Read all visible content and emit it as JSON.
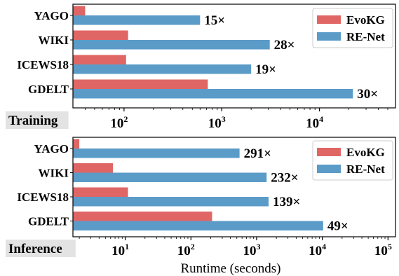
{
  "chart_data": [
    {
      "type": "bar",
      "orientation": "horizontal",
      "panel_label": "Training",
      "x_scale": "log",
      "xlim": [
        30,
        60000
      ],
      "xticks": [
        {
          "value": 100,
          "base": "10",
          "exp": "2"
        },
        {
          "value": 1000,
          "base": "10",
          "exp": "3"
        },
        {
          "value": 10000,
          "base": "10",
          "exp": "4"
        }
      ],
      "categories": [
        "YAGO",
        "WIKI",
        "ICEWS18",
        "GDELT"
      ],
      "series": [
        {
          "name": "EvoKG",
          "color": "#e06666",
          "values": [
            40,
            110,
            105,
            720
          ]
        },
        {
          "name": "RE-Net",
          "color": "#5b9bc8",
          "values": [
            600,
            3100,
            2000,
            22000
          ]
        }
      ],
      "annotations": [
        "15×",
        "28×",
        "19×",
        "30×"
      ],
      "legend": "top-right"
    },
    {
      "type": "bar",
      "orientation": "horizontal",
      "panel_label": "Inference",
      "x_scale": "log",
      "xlim": [
        1.6,
        130000
      ],
      "xticks": [
        {
          "value": 10,
          "base": "10",
          "exp": "1"
        },
        {
          "value": 100,
          "base": "10",
          "exp": "2"
        },
        {
          "value": 1000,
          "base": "10",
          "exp": "3"
        },
        {
          "value": 10000,
          "base": "10",
          "exp": "4"
        },
        {
          "value": 100000,
          "base": "10",
          "exp": "5"
        }
      ],
      "categories": [
        "YAGO",
        "WIKI",
        "ICEWS18",
        "GDELT"
      ],
      "series": [
        {
          "name": "EvoKG",
          "color": "#e06666",
          "values": [
            2,
            6.5,
            11,
            210
          ]
        },
        {
          "name": "RE-Net",
          "color": "#5b9bc8",
          "values": [
            550,
            1420,
            1520,
            10300
          ]
        }
      ],
      "annotations": [
        "291×",
        "232×",
        "139×",
        "49×"
      ],
      "legend": "top-right",
      "xlabel": "Runtime (seconds)"
    }
  ]
}
